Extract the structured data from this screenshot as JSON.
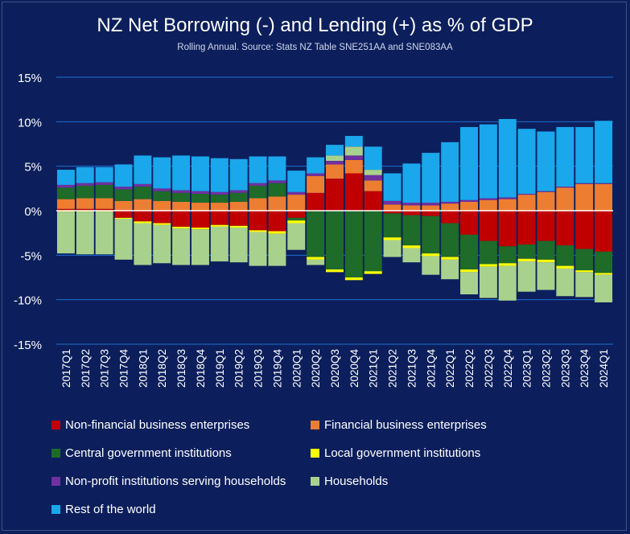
{
  "chart_data": {
    "type": "bar",
    "stacked": true,
    "title": "NZ Net Borrowing (-) and Lending (+) as % of GDP",
    "subtitle": "Rolling Annual. Source: Stats NZ Table SNE251AA and SNE083AA",
    "ylim": [
      -15,
      15
    ],
    "yticks": [
      -15,
      -10,
      -5,
      0,
      5,
      10,
      15
    ],
    "ytick_labels": [
      "-15%",
      "-10%",
      "-5%",
      "0%",
      "5%",
      "10%",
      "15%"
    ],
    "categories": [
      "2017Q1",
      "2017Q2",
      "2017Q3",
      "2017Q4",
      "2018Q1",
      "2018Q2",
      "2018Q3",
      "2018Q4",
      "2019Q1",
      "2019Q2",
      "2019Q3",
      "2019Q4",
      "2020Q1",
      "2020Q2",
      "2020Q3",
      "2020Q4",
      "2021Q1",
      "2021Q2",
      "2021Q3",
      "2021Q4",
      "2022Q1",
      "2022Q2",
      "2022Q3",
      "2022Q4",
      "2023Q1",
      "2023Q2",
      "2023Q3",
      "2023Q4",
      "2024Q1"
    ],
    "series": [
      {
        "name": "Non-financial business enterprises",
        "color": "#c00000",
        "values": [
          0.2,
          0.2,
          0.2,
          -0.8,
          -1.2,
          -1.4,
          -1.8,
          -1.9,
          -1.6,
          -1.7,
          -2.2,
          -2.3,
          -0.8,
          2.0,
          3.6,
          4.2,
          2.2,
          -0.3,
          -0.5,
          -0.6,
          -1.4,
          -2.7,
          -3.4,
          -4.0,
          -3.8,
          -3.4,
          -3.9,
          -4.3,
          -4.6
        ]
      },
      {
        "name": "Financial business enterprises",
        "color": "#ed7d31",
        "values": [
          1.1,
          1.2,
          1.2,
          1.1,
          1.3,
          1.1,
          1.0,
          0.9,
          0.9,
          1.0,
          1.4,
          1.6,
          1.8,
          1.9,
          1.6,
          1.5,
          1.2,
          0.7,
          0.6,
          0.6,
          0.8,
          1.0,
          1.2,
          1.3,
          1.8,
          2.1,
          2.6,
          3.0,
          3.0
        ]
      },
      {
        "name": "Central government institutions",
        "color": "#1e6b2a",
        "values": [
          1.3,
          1.4,
          1.5,
          1.3,
          1.4,
          1.1,
          1.0,
          1.0,
          0.9,
          1.0,
          1.4,
          1.5,
          -0.3,
          -5.2,
          -6.6,
          -7.5,
          -6.8,
          -2.7,
          -3.4,
          -4.2,
          -3.8,
          -3.9,
          -2.6,
          -1.9,
          -1.6,
          -2.1,
          -2.3,
          -2.4,
          -2.4
        ]
      },
      {
        "name": "Local government institutions",
        "color": "#ffff00",
        "values": [
          -0.1,
          -0.1,
          -0.1,
          -0.1,
          -0.2,
          -0.2,
          -0.2,
          -0.2,
          -0.2,
          -0.2,
          -0.2,
          -0.3,
          -0.3,
          -0.3,
          -0.3,
          -0.3,
          -0.3,
          -0.3,
          -0.3,
          -0.3,
          -0.3,
          -0.3,
          -0.3,
          -0.3,
          -0.3,
          -0.3,
          -0.3,
          -0.2,
          -0.2
        ]
      },
      {
        "name": "Non-profit institutions serving households",
        "color": "#7030a0",
        "values": [
          0.3,
          0.3,
          0.3,
          0.3,
          0.3,
          0.3,
          0.3,
          0.3,
          0.3,
          0.3,
          0.3,
          0.3,
          0.3,
          0.3,
          0.4,
          0.5,
          0.6,
          0.4,
          0.3,
          0.3,
          0.2,
          0.2,
          0.2,
          0.2,
          0.1,
          0.1,
          0.1,
          0.1,
          0.1
        ]
      },
      {
        "name": "Households",
        "color": "#a9d18e",
        "values": [
          -4.7,
          -4.8,
          -4.8,
          -4.6,
          -4.7,
          -4.3,
          -4.1,
          -4.0,
          -3.9,
          -3.9,
          -3.8,
          -3.6,
          -3.0,
          -0.6,
          0.6,
          1.0,
          0.6,
          -1.9,
          -1.6,
          -2.1,
          -2.2,
          -2.5,
          -3.5,
          -3.9,
          -3.4,
          -3.1,
          -3.1,
          -2.8,
          -3.1
        ]
      },
      {
        "name": "Rest of the world",
        "color": "#1aa7ec",
        "values": [
          1.7,
          1.8,
          1.7,
          2.5,
          3.2,
          3.5,
          3.9,
          3.9,
          3.8,
          3.5,
          3.0,
          2.7,
          2.4,
          1.8,
          1.2,
          1.2,
          2.6,
          3.1,
          4.4,
          5.6,
          6.7,
          8.2,
          8.3,
          8.8,
          7.3,
          6.7,
          6.7,
          6.3,
          7.0
        ]
      }
    ],
    "legend_position": "bottom",
    "grid": true
  }
}
